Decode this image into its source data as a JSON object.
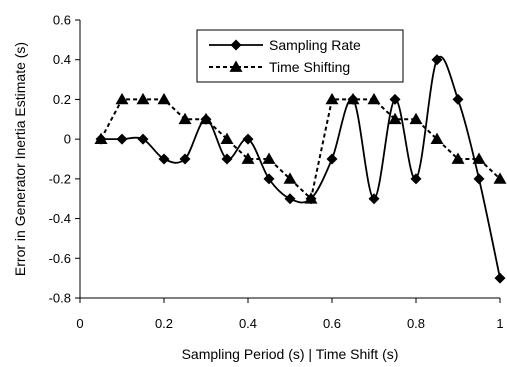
{
  "chart_data": {
    "type": "line",
    "xlabel": "Sampling Period (s) | Time Shift (s)",
    "ylabel": "Error in Generator Inertia Estimate (s)",
    "xlim": [
      0,
      1
    ],
    "ylim": [
      -0.8,
      0.6
    ],
    "x_ticks": [
      "0",
      "0.2",
      "0.4",
      "0.6",
      "0.8",
      "1"
    ],
    "x_tick_values": [
      0,
      0.2,
      0.4,
      0.6,
      0.8,
      1
    ],
    "y_ticks": [
      "0.6",
      "0.4",
      "0.2",
      "0",
      "-0.2",
      "-0.4",
      "-0.6",
      "-0.8"
    ],
    "y_tick_values": [
      0.6,
      0.4,
      0.2,
      0,
      -0.2,
      -0.4,
      -0.6,
      -0.8
    ],
    "grid": false,
    "legend_position": "top-center",
    "series": [
      {
        "name": "Sampling Rate",
        "marker": "diamond",
        "line_style": "solid",
        "smooth": true,
        "color": "#000000",
        "x": [
          0.05,
          0.1,
          0.15,
          0.2,
          0.25,
          0.3,
          0.35,
          0.4,
          0.45,
          0.5,
          0.55,
          0.6,
          0.65,
          0.7,
          0.75,
          0.8,
          0.85,
          0.9,
          0.95,
          1.0
        ],
        "y": [
          0,
          0,
          0,
          -0.1,
          -0.1,
          0.1,
          -0.1,
          0,
          -0.2,
          -0.3,
          -0.3,
          -0.1,
          0.2,
          -0.3,
          0.2,
          -0.2,
          0.4,
          0.2,
          -0.2,
          -0.7
        ]
      },
      {
        "name": "Time Shifting",
        "marker": "triangle",
        "line_style": "dashed",
        "smooth": false,
        "color": "#000000",
        "x": [
          0.05,
          0.1,
          0.15,
          0.2,
          0.25,
          0.3,
          0.35,
          0.4,
          0.45,
          0.5,
          0.55,
          0.6,
          0.65,
          0.7,
          0.75,
          0.8,
          0.85,
          0.9,
          0.95,
          1.0
        ],
        "y": [
          0,
          0.2,
          0.2,
          0.2,
          0.1,
          0.1,
          0,
          -0.1,
          -0.1,
          -0.2,
          -0.3,
          0.2,
          0.2,
          0.2,
          0.1,
          0.1,
          0,
          -0.1,
          -0.1,
          -0.2
        ]
      }
    ]
  }
}
